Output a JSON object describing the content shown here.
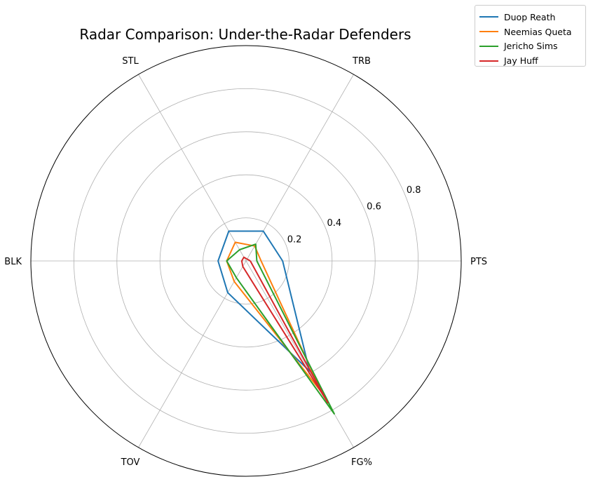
{
  "chart_data": {
    "type": "radar",
    "title": "Radar Comparison: Under-the-Radar Defenders",
    "axes": [
      "PTS",
      "TRB",
      "STL",
      "BLK",
      "TOV",
      "FG%"
    ],
    "radial_ticks": [
      0.2,
      0.4,
      0.6,
      0.8
    ],
    "radial_range": [
      0,
      1.0
    ],
    "grid": true,
    "legend_position": "top-right outside",
    "series": [
      {
        "name": "Duop Reath",
        "color": "#1f77b4",
        "values": [
          0.17,
          0.16,
          0.16,
          0.13,
          0.17,
          0.59
        ]
      },
      {
        "name": "Neemias Queta",
        "color": "#ff7f0e",
        "values": [
          0.07,
          0.08,
          0.1,
          0.09,
          0.11,
          0.71
        ]
      },
      {
        "name": "Jericho Sims",
        "color": "#2ca02c",
        "values": [
          0.05,
          0.09,
          0.06,
          0.09,
          0.09,
          0.82
        ]
      },
      {
        "name": "Jay Huff",
        "color": "#d62728",
        "values": [
          0.02,
          0.01,
          0.02,
          0.02,
          0.03,
          0.76
        ]
      }
    ]
  }
}
